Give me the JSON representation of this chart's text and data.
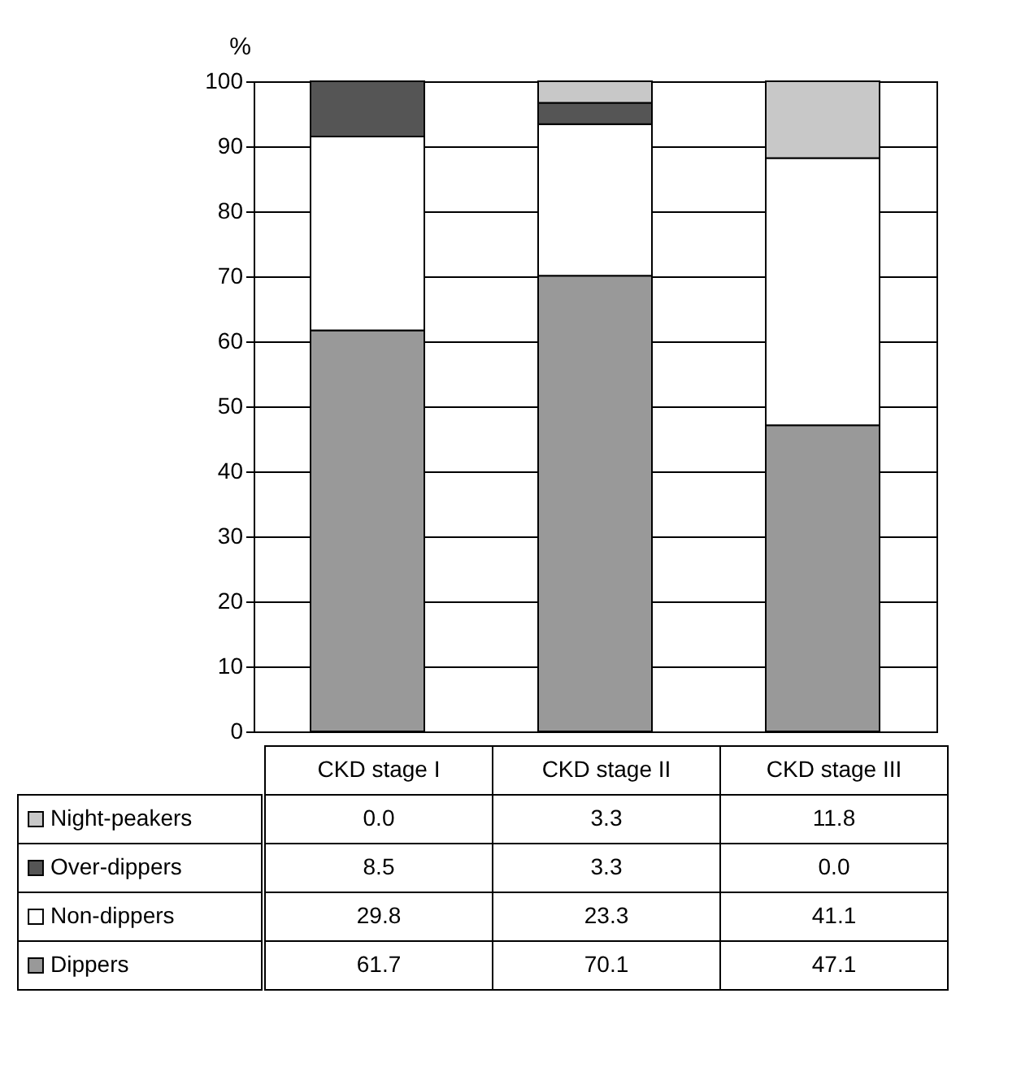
{
  "chart_data": {
    "type": "bar",
    "stacked": true,
    "categories": [
      "CKD stage I",
      "CKD stage II",
      "CKD stage III"
    ],
    "ylabel": "%",
    "ylim": [
      0,
      100
    ],
    "yticks": [
      0,
      10,
      20,
      30,
      40,
      50,
      60,
      70,
      80,
      90,
      100
    ],
    "grid": "y",
    "legend": "bottom left",
    "series": [
      {
        "name": "Dippers",
        "color": "#999999",
        "values": [
          61.7,
          70.1,
          47.1
        ],
        "value_labels": [
          "61.7",
          "70.1",
          "47.1"
        ]
      },
      {
        "name": "Non-dippers",
        "color": "#ffffff",
        "values": [
          29.8,
          23.3,
          41.1
        ],
        "value_labels": [
          "29.8",
          "23.3",
          "41.1"
        ]
      },
      {
        "name": "Over-dippers",
        "color": "#555555",
        "values": [
          8.5,
          3.3,
          0.0
        ],
        "value_labels": [
          "8.5",
          "3.3",
          "0.0"
        ]
      },
      {
        "name": "Night-peakers",
        "color": "#c8c8c8",
        "values": [
          0.0,
          3.3,
          11.8
        ],
        "value_labels": [
          "0.0",
          "3.3",
          "11.8"
        ]
      }
    ]
  }
}
